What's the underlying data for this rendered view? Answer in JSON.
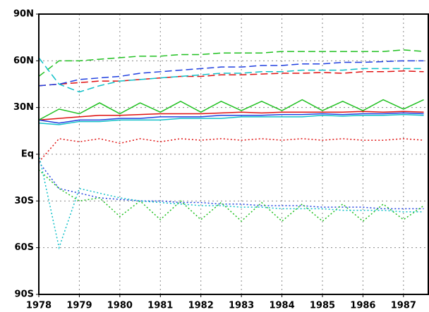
{
  "chart_data": {
    "type": "line",
    "x": [
      1978,
      1978.5,
      1979,
      1979.5,
      1980,
      1980.5,
      1981,
      1981.5,
      1982,
      1982.5,
      1983,
      1983.5,
      1984,
      1984.5,
      1985,
      1985.5,
      1986,
      1986.5,
      1987,
      1987.5
    ],
    "xlim": [
      1978,
      1987.63
    ],
    "xticks": [
      1978,
      1979,
      1980,
      1981,
      1982,
      1983,
      1984,
      1985,
      1986,
      1987
    ],
    "ylim": [
      -90,
      90
    ],
    "yticks": [
      {
        "value": -90,
        "label": "90S"
      },
      {
        "value": -60,
        "label": "60S"
      },
      {
        "value": -30,
        "label": "30S"
      },
      {
        "value": 0,
        "label": "Eq"
      },
      {
        "value": 30,
        "label": "30N"
      },
      {
        "value": 60,
        "label": "60N"
      },
      {
        "value": 90,
        "label": "90N"
      }
    ],
    "grid": true,
    "series": [
      {
        "color": "#e01010",
        "dash": "solid",
        "values": [
          22,
          23,
          24,
          25,
          25,
          25.5,
          26,
          26,
          26,
          26.5,
          27,
          26.5,
          27,
          27,
          27,
          27,
          27.5,
          27,
          27.5,
          27
        ]
      },
      {
        "color": "#e01010",
        "dash": "dashed",
        "values": [
          44,
          45,
          46,
          47,
          47,
          48,
          49,
          50,
          50,
          51,
          51,
          51.5,
          52,
          52,
          52.5,
          52,
          53,
          53,
          53.5,
          53
        ]
      },
      {
        "color": "#e01010",
        "dash": "dotted",
        "values": [
          -5,
          10,
          8,
          10,
          7,
          10,
          8,
          10,
          9,
          10,
          9,
          10,
          9,
          10,
          9,
          10,
          9,
          9,
          10,
          9
        ]
      },
      {
        "color": "#2040e0",
        "dash": "solid",
        "values": [
          22,
          20,
          22,
          22,
          23,
          23,
          24,
          24,
          24,
          25,
          25,
          25,
          25.5,
          25.5,
          26,
          25.5,
          26,
          26,
          26.5,
          26
        ]
      },
      {
        "color": "#2040e0",
        "dash": "dashed",
        "values": [
          44,
          45,
          48,
          49,
          50,
          52,
          53,
          54,
          55,
          56,
          56,
          57,
          57,
          58,
          58,
          59,
          59,
          59.5,
          60,
          60
        ]
      },
      {
        "color": "#2040e0",
        "dash": "dotted",
        "values": [
          -5,
          -22,
          -25,
          -28,
          -29,
          -30,
          -30,
          -31,
          -31,
          -32,
          -32,
          -33,
          -33,
          -33,
          -34,
          -34,
          -34,
          -35,
          -35,
          -35
        ]
      },
      {
        "color": "#20c020",
        "dash": "solid",
        "values": [
          22,
          29,
          26,
          33,
          26,
          33,
          27,
          34,
          27,
          34,
          28,
          34,
          28,
          35,
          28,
          34,
          28,
          35,
          29,
          35
        ]
      },
      {
        "color": "#20c020",
        "dash": "dashed",
        "values": [
          50,
          60,
          60,
          61,
          62,
          63,
          63,
          64,
          64,
          65,
          65,
          65,
          66,
          66,
          66,
          66,
          66,
          66,
          67,
          66
        ]
      },
      {
        "color": "#20c020",
        "dash": "dotted",
        "values": [
          -10,
          -22,
          -30,
          -28,
          -40,
          -30,
          -42,
          -30,
          -42,
          -31,
          -43,
          -31,
          -43,
          -32,
          -43,
          -32,
          -43,
          -32,
          -42,
          -33
        ]
      },
      {
        "color": "#10c0c8",
        "dash": "solid",
        "values": [
          20,
          19,
          21,
          21,
          22,
          22,
          22,
          23,
          23,
          23,
          24,
          24,
          24,
          24,
          25,
          24.5,
          25,
          25,
          25.5,
          25
        ]
      },
      {
        "color": "#10c0c8",
        "dash": "dashed",
        "values": [
          62,
          45,
          40,
          44,
          47,
          48,
          49,
          50,
          51,
          52,
          52,
          53,
          53,
          54,
          54,
          54,
          55,
          55,
          55,
          55
        ]
      },
      {
        "color": "#10c0c8",
        "dash": "dotted",
        "values": [
          0,
          -60,
          -22,
          -25,
          -28,
          -30,
          -31,
          -32,
          -33,
          -33,
          -34,
          -34,
          -35,
          -35,
          -35,
          -36,
          -36,
          -36,
          -37,
          -37
        ]
      }
    ]
  }
}
